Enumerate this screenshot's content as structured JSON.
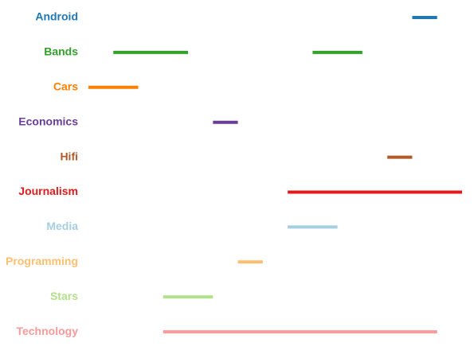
{
  "chart_data": {
    "type": "timeline",
    "xlim": [
      0,
      15
    ],
    "series": [
      {
        "name": "Android",
        "color": "#1f78b4",
        "intervals": [
          [
            13,
            14
          ]
        ]
      },
      {
        "name": "Bands",
        "color": "#33a02c",
        "intervals": [
          [
            1,
            4
          ],
          [
            9,
            11
          ]
        ]
      },
      {
        "name": "Cars",
        "color": "#ff7f00",
        "intervals": [
          [
            0,
            2
          ]
        ]
      },
      {
        "name": "Economics",
        "color": "#6a3d9a",
        "intervals": [
          [
            5,
            6
          ]
        ]
      },
      {
        "name": "Hifi",
        "color": "#b15928",
        "intervals": [
          [
            12,
            13
          ]
        ]
      },
      {
        "name": "Journalism",
        "color": "#e31a1c",
        "intervals": [
          [
            8,
            15
          ]
        ]
      },
      {
        "name": "Media",
        "color": "#a6cee3",
        "intervals": [
          [
            8,
            10
          ]
        ]
      },
      {
        "name": "Programming",
        "color": "#fdbf6f",
        "intervals": [
          [
            6,
            7
          ]
        ]
      },
      {
        "name": "Stars",
        "color": "#b2df8a",
        "intervals": [
          [
            3,
            5
          ]
        ]
      },
      {
        "name": "Technology",
        "color": "#fb9a99",
        "intervals": [
          [
            3,
            14
          ]
        ]
      }
    ]
  }
}
